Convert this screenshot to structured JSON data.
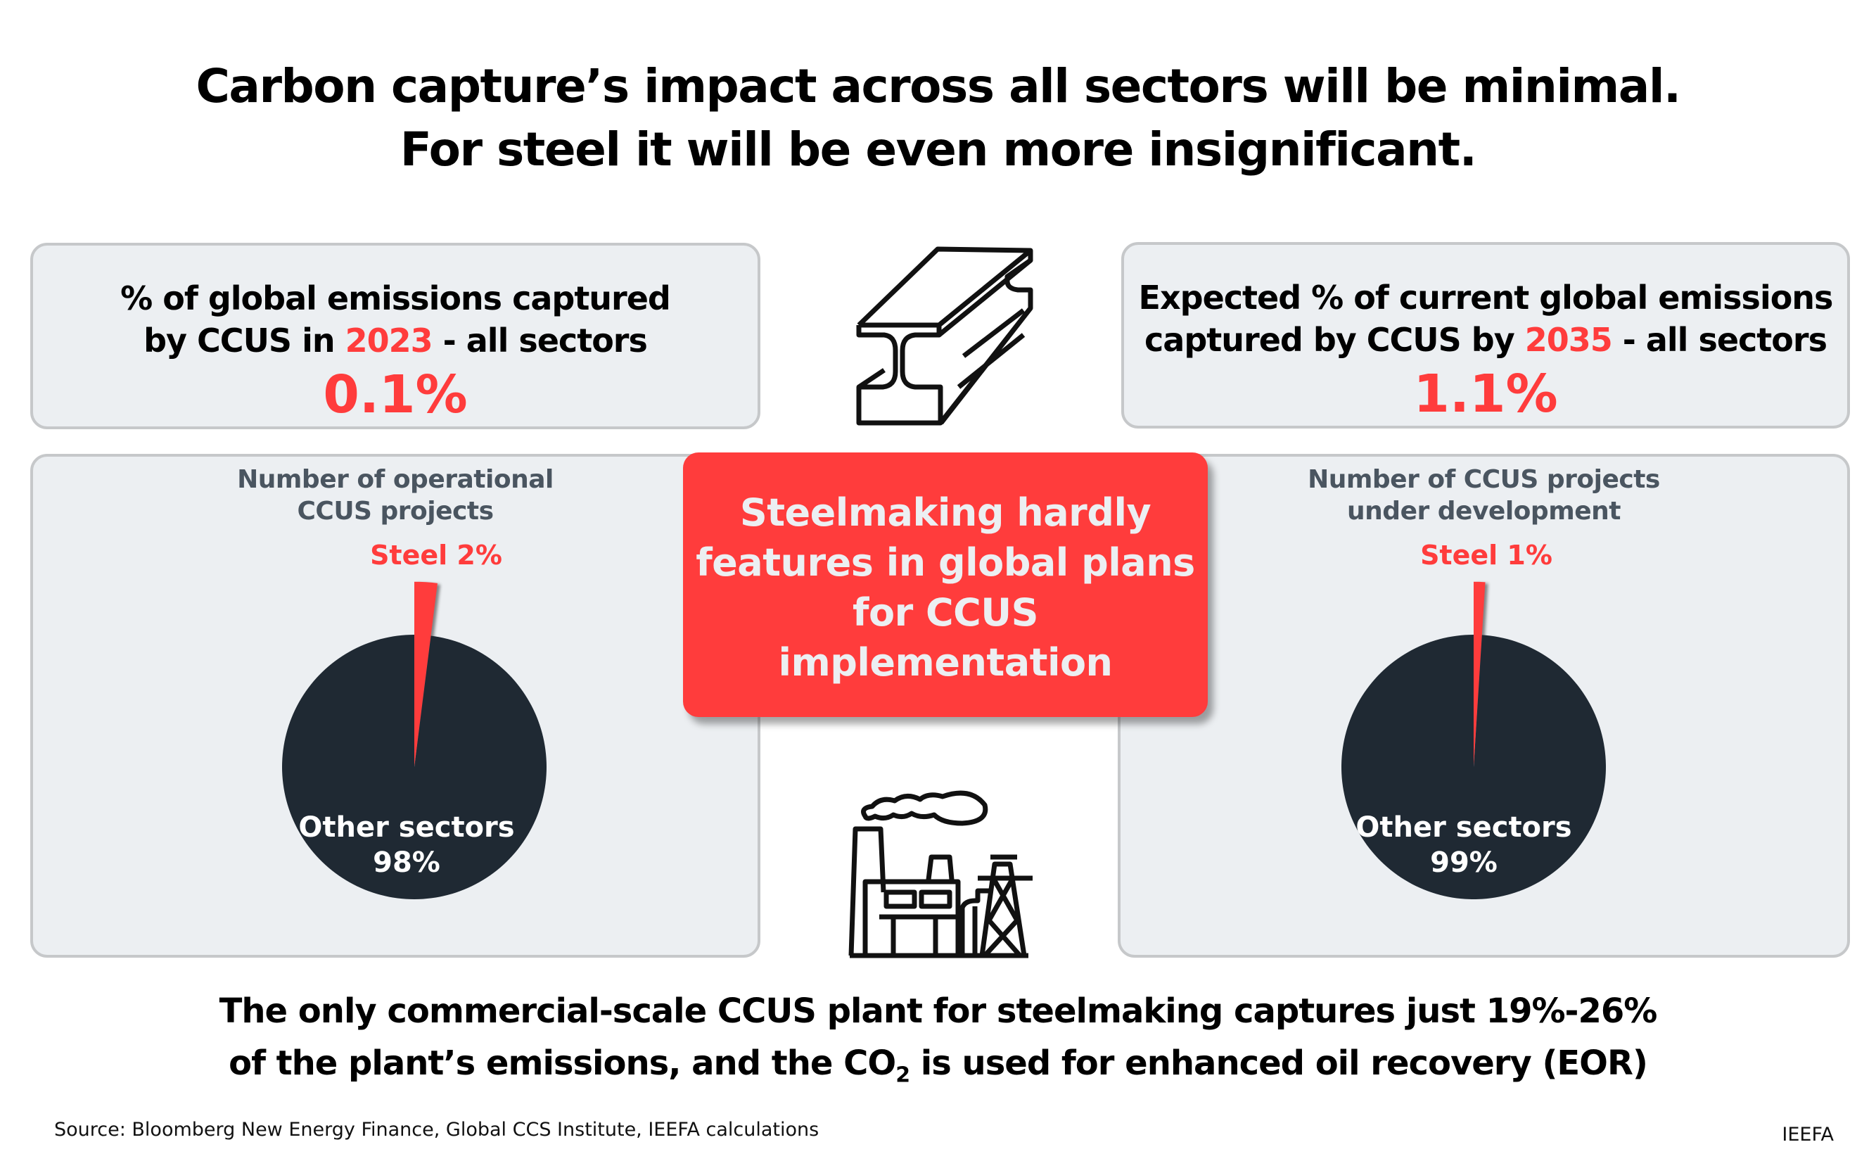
{
  "header": {
    "title_line1": "Carbon capture’s impact across all sectors will be minimal.",
    "title_line2": "For steel it will be even more insignificant."
  },
  "stat_left": {
    "line1": "% of global emissions captured",
    "line2_pre": "by CCUS in ",
    "line2_year": "2023",
    "line2_post": " - all sectors",
    "value": "0.1%"
  },
  "stat_right": {
    "line1": "Expected % of current global emissions",
    "line2_pre": "captured by CCUS by ",
    "line2_year": "2035",
    "line2_post": " - all sectors",
    "value": "1.1%"
  },
  "callout": {
    "line1": "Steelmaking hardly",
    "line2": "features in global plans",
    "line3": "for CCUS",
    "line4": "implementation"
  },
  "icons": {
    "top": "steel-i-beam-icon",
    "bottom": "factory-icon"
  },
  "chart_data": [
    {
      "type": "pie",
      "title": "Number of operational CCUS projects",
      "title_line1": "Number of operational",
      "title_line2": "CCUS projects",
      "slices": [
        {
          "name": "Steel",
          "value": 2,
          "label": "Steel 2%",
          "color": "#ff3c3c",
          "exploded": true
        },
        {
          "name": "Other sectors",
          "value": 98,
          "label_name": "Other sectors",
          "label_value": "98%",
          "color": "#1f2933"
        }
      ]
    },
    {
      "type": "pie",
      "title": "Number of CCUS projects under development",
      "title_line1": "Number of CCUS projects",
      "title_line2": "under development",
      "slices": [
        {
          "name": "Steel",
          "value": 1,
          "label": "Steel 1%",
          "color": "#ff3c3c",
          "exploded": true
        },
        {
          "name": "Other sectors",
          "value": 99,
          "label_name": "Other sectors",
          "label_value": "99%",
          "color": "#1f2933"
        }
      ]
    }
  ],
  "footer": {
    "line1": "The only commercial-scale CCUS plant for steelmaking captures just 19%-26%",
    "line2_pre": "of the plant’s emissions, and the CO",
    "line2_sub": "2",
    "line2_post": " is used for enhanced oil recovery (EOR)",
    "source": "Source: Bloomberg New Energy Finance, Global CCS Institute, IEEFA calculations",
    "brand": "IEEFA"
  },
  "colors": {
    "accent": "#ff3c3c",
    "dark": "#1f2933",
    "panel": "#eceff2",
    "subtitle": "#4a5560"
  }
}
